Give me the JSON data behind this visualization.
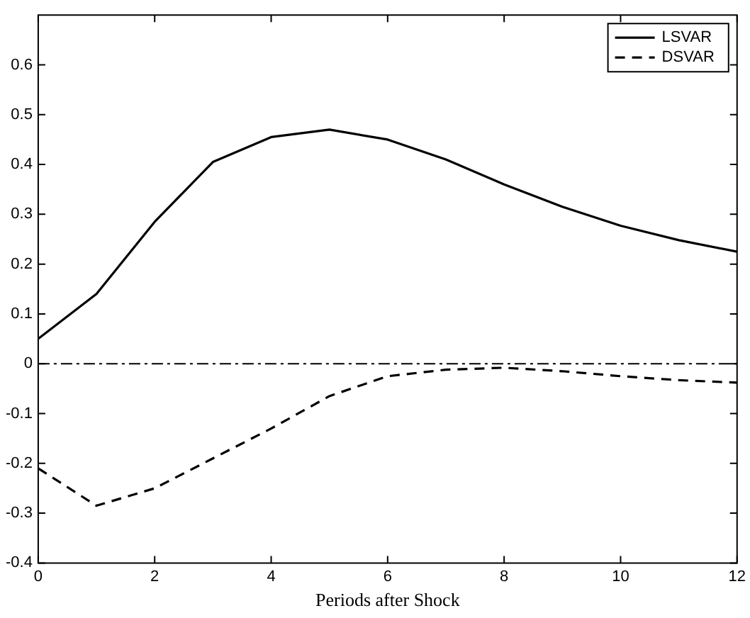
{
  "chart_data": {
    "type": "line",
    "xlabel": "Periods after Shock",
    "x": [
      0,
      1,
      2,
      3,
      4,
      5,
      6,
      7,
      8,
      9,
      10,
      11,
      12
    ],
    "series": [
      {
        "name": "LSVAR",
        "color": "#000000",
        "line_style": "solid",
        "values": [
          0.05,
          0.14,
          0.285,
          0.405,
          0.455,
          0.47,
          0.45,
          0.41,
          0.36,
          0.315,
          0.277,
          0.248,
          0.225
        ]
      },
      {
        "name": "DSVAR",
        "color": "#000000",
        "line_style": "dashed",
        "values": [
          -0.21,
          -0.285,
          -0.25,
          -0.19,
          -0.13,
          -0.065,
          -0.025,
          -0.012,
          -0.008,
          -0.015,
          -0.025,
          -0.033,
          -0.038
        ]
      }
    ],
    "xlim": [
      0,
      12
    ],
    "xticks": [
      0,
      2,
      4,
      6,
      8,
      10,
      12
    ],
    "ylim": [
      -0.4,
      0.7
    ],
    "yticks": [
      -0.4,
      -0.3,
      -0.2,
      -0.1,
      0,
      0.1,
      0.2,
      0.3,
      0.4,
      0.5,
      0.6
    ],
    "ref_lines": [
      {
        "axis": "y",
        "value": 0,
        "line_style": "dashdot",
        "color": "#000000"
      }
    ],
    "grid": false,
    "legend": "top right",
    "marker": "none"
  }
}
